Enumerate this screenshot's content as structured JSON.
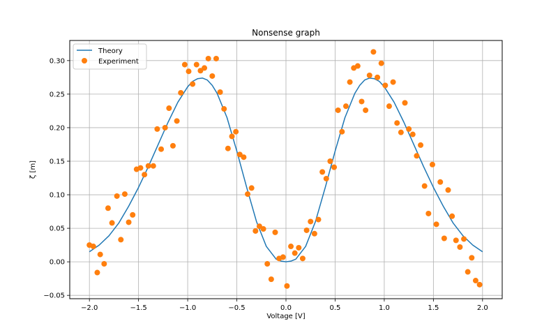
{
  "chart_data": {
    "type": "scatter",
    "title": "Nonsense graph",
    "xlabel": "Voltage [V]",
    "ylabel": "ζ [m]",
    "xlim": [
      -2.2,
      2.2
    ],
    "ylim": [
      -0.055,
      0.33
    ],
    "xticks": [
      -2.0,
      -1.5,
      -1.0,
      -0.5,
      0.0,
      0.5,
      1.0,
      1.5,
      2.0
    ],
    "xtick_labels": [
      "−2.0",
      "−1.5",
      "−1.0",
      "−0.5",
      "0.0",
      "0.5",
      "1.0",
      "1.5",
      "2.0"
    ],
    "yticks": [
      -0.05,
      0.0,
      0.05,
      0.1,
      0.15,
      0.2,
      0.25,
      0.3
    ],
    "ytick_labels": [
      "−0.05",
      "0.00",
      "0.05",
      "0.10",
      "0.15",
      "0.20",
      "0.25",
      "0.30"
    ],
    "grid": true,
    "legend_position": "top-left",
    "series": [
      {
        "name": "Theory",
        "kind": "line",
        "color": "#1f77b4",
        "x": [
          -2.0,
          -1.9,
          -1.8,
          -1.7,
          -1.6,
          -1.5,
          -1.4,
          -1.3,
          -1.2,
          -1.1,
          -1.0,
          -0.95,
          -0.9,
          -0.85,
          -0.8,
          -0.75,
          -0.7,
          -0.6,
          -0.5,
          -0.4,
          -0.3,
          -0.2,
          -0.1,
          -0.05,
          0.0,
          0.05,
          0.1,
          0.2,
          0.3,
          0.4,
          0.5,
          0.6,
          0.7,
          0.75,
          0.8,
          0.85,
          0.9,
          0.95,
          1.0,
          1.1,
          1.2,
          1.3,
          1.4,
          1.5,
          1.6,
          1.7,
          1.8,
          1.9,
          2.0
        ],
        "y": [
          0.015,
          0.025,
          0.039,
          0.058,
          0.083,
          0.111,
          0.142,
          0.175,
          0.208,
          0.238,
          0.261,
          0.269,
          0.273,
          0.274,
          0.271,
          0.263,
          0.251,
          0.215,
          0.165,
          0.111,
          0.06,
          0.023,
          0.004,
          0.001,
          0.0,
          0.001,
          0.004,
          0.023,
          0.06,
          0.111,
          0.165,
          0.215,
          0.251,
          0.263,
          0.271,
          0.274,
          0.273,
          0.269,
          0.261,
          0.238,
          0.208,
          0.175,
          0.142,
          0.111,
          0.083,
          0.058,
          0.039,
          0.025,
          0.015
        ]
      },
      {
        "name": "Experiment",
        "kind": "scatter",
        "color": "#ff7f0e",
        "x": [
          -2.0,
          -1.96,
          -1.92,
          -1.89,
          -1.85,
          -1.81,
          -1.77,
          -1.72,
          -1.68,
          -1.64,
          -1.6,
          -1.56,
          -1.52,
          -1.48,
          -1.44,
          -1.4,
          -1.35,
          -1.31,
          -1.27,
          -1.23,
          -1.19,
          -1.15,
          -1.11,
          -1.07,
          -1.03,
          -0.99,
          -0.95,
          -0.91,
          -0.87,
          -0.83,
          -0.79,
          -0.75,
          -0.71,
          -0.67,
          -0.63,
          -0.59,
          -0.55,
          -0.51,
          -0.47,
          -0.43,
          -0.39,
          -0.35,
          -0.31,
          -0.27,
          -0.23,
          -0.19,
          -0.15,
          -0.11,
          -0.07,
          -0.03,
          0.01,
          0.05,
          0.09,
          0.13,
          0.17,
          0.21,
          0.25,
          0.29,
          0.33,
          0.37,
          0.41,
          0.45,
          0.49,
          0.53,
          0.57,
          0.61,
          0.65,
          0.69,
          0.73,
          0.77,
          0.81,
          0.85,
          0.89,
          0.93,
          0.97,
          1.01,
          1.05,
          1.09,
          1.13,
          1.17,
          1.21,
          1.25,
          1.29,
          1.33,
          1.37,
          1.41,
          1.45,
          1.49,
          1.53,
          1.57,
          1.61,
          1.65,
          1.69,
          1.73,
          1.77,
          1.81,
          1.85,
          1.89,
          1.93,
          1.97
        ],
        "y": [
          0.025,
          0.023,
          -0.016,
          0.011,
          -0.003,
          0.08,
          0.058,
          0.098,
          0.033,
          0.101,
          0.059,
          0.07,
          0.138,
          0.14,
          0.13,
          0.143,
          0.143,
          0.198,
          0.168,
          0.2,
          0.229,
          0.173,
          0.21,
          0.252,
          0.294,
          0.284,
          0.265,
          0.294,
          0.285,
          0.289,
          0.303,
          0.277,
          0.303,
          0.253,
          0.228,
          0.169,
          0.187,
          0.194,
          0.16,
          0.156,
          0.101,
          0.11,
          0.046,
          0.053,
          0.049,
          -0.003,
          -0.026,
          0.044,
          0.005,
          0.007,
          -0.036,
          0.023,
          0.013,
          0.021,
          0.005,
          0.047,
          0.06,
          0.042,
          0.063,
          0.134,
          0.124,
          0.15,
          0.141,
          0.226,
          0.194,
          0.232,
          0.268,
          0.289,
          0.292,
          0.239,
          0.226,
          0.278,
          0.313,
          0.275,
          0.296,
          0.263,
          0.232,
          0.268,
          0.207,
          0.193,
          0.237,
          0.198,
          0.19,
          0.158,
          0.174,
          0.113,
          0.072,
          0.145,
          0.056,
          0.119,
          0.035,
          0.107,
          0.068,
          0.032,
          0.022,
          0.034,
          -0.015,
          0.006,
          -0.028,
          -0.034
        ]
      }
    ]
  }
}
